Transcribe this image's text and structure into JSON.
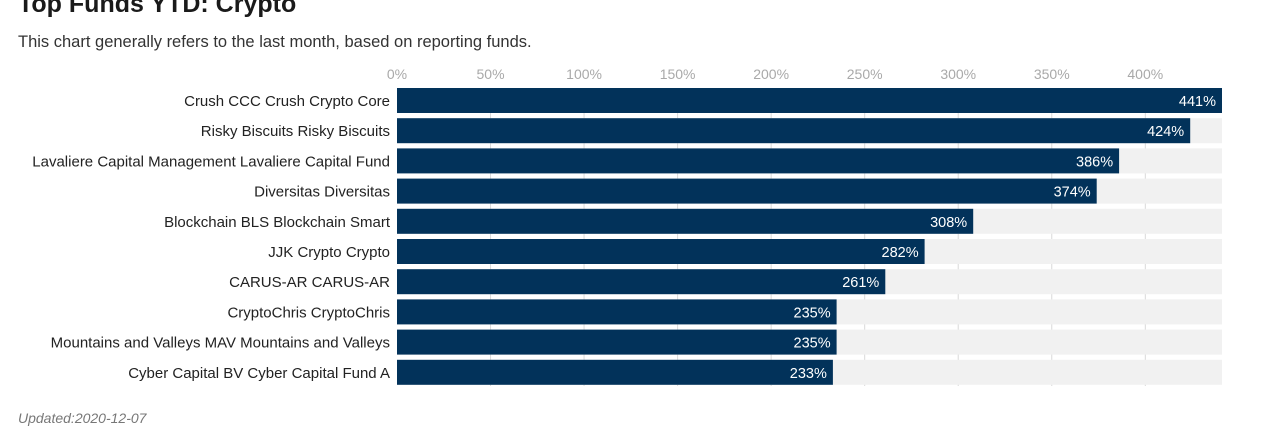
{
  "header": {
    "title": "Top Funds YTD: Crypto",
    "subtitle": "This chart generally refers to the last month, based on reporting funds."
  },
  "footer": {
    "updated": "Updated:2020-12-07"
  },
  "colors": {
    "bar": "#02325a",
    "track": "#f1f1f1",
    "grid": "#d9d9d9",
    "tick_label": "#a9a9a9",
    "category_label": "#222222",
    "value_label": "#ffffff"
  },
  "chart_data": {
    "type": "bar",
    "orientation": "horizontal",
    "categories": [
      "Crush CCC Crush Crypto Core",
      "Risky Biscuits Risky Biscuits",
      "Lavaliere Capital Management Lavaliere Capital Fund",
      "Diversitas Diversitas",
      "Blockchain BLS Blockchain Smart",
      "JJK Crypto Crypto",
      "CARUS-AR CARUS-AR",
      "CryptoChris CryptoChris",
      "Mountains and Valleys MAV Mountains and Valleys",
      "Cyber Capital BV Cyber Capital Fund A"
    ],
    "values": [
      441,
      424,
      386,
      374,
      308,
      282,
      261,
      235,
      235,
      233
    ],
    "value_labels": [
      "441%",
      "424%",
      "386%",
      "374%",
      "308%",
      "282%",
      "261%",
      "235%",
      "235%",
      "233%"
    ],
    "xticks": [
      0,
      50,
      100,
      150,
      200,
      250,
      300,
      350,
      400
    ],
    "xtick_labels": [
      "0%",
      "50%",
      "100%",
      "150%",
      "200%",
      "250%",
      "300%",
      "350%",
      "400%"
    ],
    "xlim": [
      0,
      441
    ],
    "xaxis_position": "top",
    "grid": true,
    "legend": "none"
  }
}
